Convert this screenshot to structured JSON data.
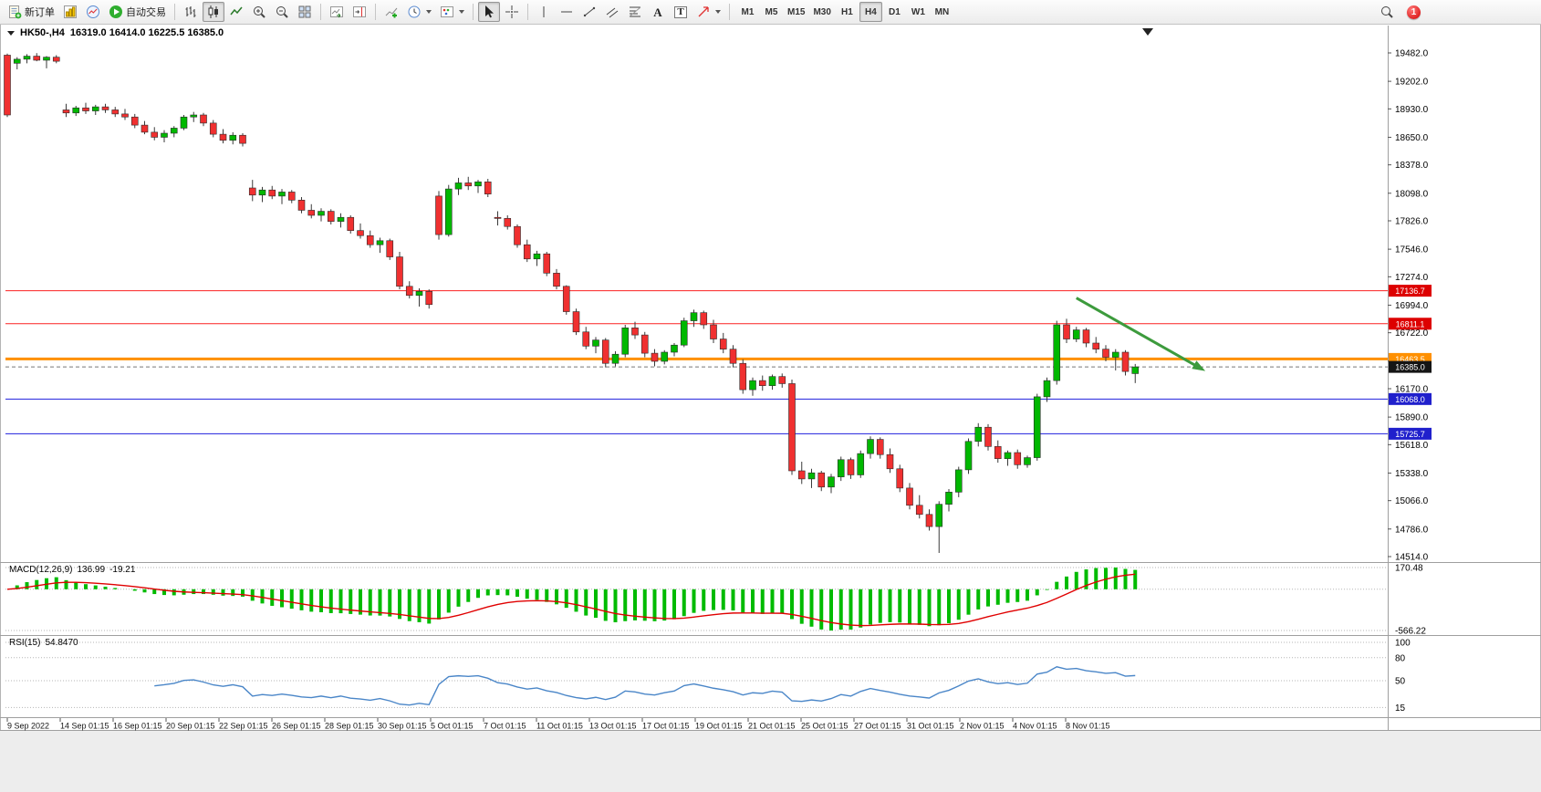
{
  "toolbar": {
    "new_order_label": "新订单",
    "autotrading_label": "自动交易",
    "timeframes": [
      "M1",
      "M5",
      "M15",
      "M30",
      "H1",
      "H4",
      "D1",
      "W1",
      "MN"
    ],
    "active_timeframe": "H4",
    "notification_badge": "1",
    "text_tool_glyph": "A",
    "label_tool_glyph": "T"
  },
  "chart_data": {
    "type": "candlestick",
    "symbol_period": "HK50-,H4",
    "title_ohlc_text": "16319.0 16414.0 16225.5 16385.0",
    "current_candle": {
      "open": 16319.0,
      "high": 16414.0,
      "low": 16225.5,
      "close": 16385.0
    },
    "up_color": "#00b800",
    "down_color": "#f03030",
    "price_axis_ticks": [
      "19482.0",
      "19202.0",
      "18930.0",
      "18650.0",
      "18378.0",
      "18098.0",
      "17826.0",
      "17546.0",
      "17274.0",
      "16994.0",
      "16722.0",
      "16442.0",
      "16170.0",
      "15890.0",
      "15618.0",
      "15338.0",
      "15066.0",
      "14786.0",
      "14514.0"
    ],
    "time_axis_labels": [
      "9 Sep 2022",
      "14 Sep 01:15",
      "16 Sep 01:15",
      "20 Sep 01:15",
      "22 Sep 01:15",
      "26 Sep 01:15",
      "28 Sep 01:15",
      "30 Sep 01:15",
      "5 Oct 01:15",
      "7 Oct 01:15",
      "11 Oct 01:15",
      "13 Oct 01:15",
      "17 Oct 01:15",
      "19 Oct 01:15",
      "21 Oct 01:15",
      "25 Oct 01:15",
      "27 Oct 01:15",
      "31 Oct 01:15",
      "2 Nov 01:15",
      "4 Nov 01:15",
      "8 Nov 01:15"
    ],
    "horizontal_levels": [
      {
        "label": "17136.7",
        "price": 17136.7,
        "line_color": "#fb2020",
        "label_bg": "#dd0000",
        "width": 1,
        "dash": ""
      },
      {
        "label": "16811.1",
        "price": 16811.1,
        "line_color": "#fb2020",
        "label_bg": "#dd0000",
        "width": 1,
        "dash": ""
      },
      {
        "label": "16463.5",
        "price": 16463.5,
        "line_color": "#ff9000",
        "label_bg": "#ff9000",
        "width": 3,
        "dash": ""
      },
      {
        "label": "16385.0",
        "price": 16385.0,
        "line_color": "#777777",
        "label_bg": "#151515",
        "width": 1,
        "dash": "4,3"
      },
      {
        "label": "16068.0",
        "price": 16068.0,
        "line_color": "#2020dd",
        "label_bg": "#2020cc",
        "width": 1,
        "dash": ""
      },
      {
        "label": "15725.7",
        "price": 15725.7,
        "line_color": "#2020dd",
        "label_bg": "#2020cc",
        "width": 1,
        "dash": ""
      }
    ],
    "trend_arrow": {
      "from_index": 109,
      "from_price": 17065,
      "to_index": 121.5,
      "to_price": 16380,
      "color": "#3d9b3d"
    },
    "candles_ohlc": [
      [
        19460,
        19475,
        18850,
        18870
      ],
      [
        19380,
        19440,
        19320,
        19420
      ],
      [
        19420,
        19470,
        19380,
        19450
      ],
      [
        19450,
        19480,
        19400,
        19410
      ],
      [
        19410,
        19450,
        19330,
        19440
      ],
      [
        19440,
        19460,
        19380,
        19400
      ],
      [
        18920,
        18980,
        18850,
        18890
      ],
      [
        18890,
        18960,
        18860,
        18940
      ],
      [
        18940,
        18990,
        18880,
        18910
      ],
      [
        18910,
        18970,
        18870,
        18950
      ],
      [
        18950,
        18980,
        18890,
        18920
      ],
      [
        18920,
        18950,
        18850,
        18880
      ],
      [
        18880,
        18930,
        18820,
        18850
      ],
      [
        18850,
        18880,
        18740,
        18770
      ],
      [
        18770,
        18810,
        18680,
        18700
      ],
      [
        18700,
        18750,
        18620,
        18650
      ],
      [
        18650,
        18720,
        18600,
        18690
      ],
      [
        18690,
        18760,
        18650,
        18740
      ],
      [
        18740,
        18870,
        18720,
        18850
      ],
      [
        18850,
        18900,
        18800,
        18870
      ],
      [
        18870,
        18890,
        18760,
        18790
      ],
      [
        18790,
        18820,
        18650,
        18680
      ],
      [
        18680,
        18730,
        18590,
        18620
      ],
      [
        18620,
        18700,
        18580,
        18670
      ],
      [
        18670,
        18690,
        18560,
        18590
      ],
      [
        18150,
        18230,
        18020,
        18080
      ],
      [
        18080,
        18160,
        18010,
        18130
      ],
      [
        18130,
        18170,
        18040,
        18070
      ],
      [
        18070,
        18140,
        17990,
        18110
      ],
      [
        18110,
        18130,
        18000,
        18030
      ],
      [
        18030,
        18060,
        17900,
        17930
      ],
      [
        17930,
        17990,
        17850,
        17880
      ],
      [
        17880,
        17950,
        17820,
        17920
      ],
      [
        17920,
        17940,
        17790,
        17820
      ],
      [
        17820,
        17900,
        17760,
        17860
      ],
      [
        17860,
        17880,
        17700,
        17730
      ],
      [
        17730,
        17800,
        17650,
        17680
      ],
      [
        17680,
        17730,
        17560,
        17590
      ],
      [
        17590,
        17660,
        17510,
        17630
      ],
      [
        17630,
        17650,
        17440,
        17470
      ],
      [
        17470,
        17520,
        17150,
        17180
      ],
      [
        17180,
        17230,
        17060,
        17090
      ],
      [
        17090,
        17160,
        16980,
        17130
      ],
      [
        17130,
        17150,
        16960,
        17000
      ],
      [
        18070,
        18120,
        17640,
        17690
      ],
      [
        17690,
        18180,
        17670,
        18140
      ],
      [
        18140,
        18250,
        18080,
        18200
      ],
      [
        18200,
        18260,
        18130,
        18170
      ],
      [
        18170,
        18230,
        18100,
        18210
      ],
      [
        18210,
        18240,
        18060,
        18090
      ],
      [
        17860,
        17920,
        17780,
        17850
      ],
      [
        17850,
        17880,
        17740,
        17770
      ],
      [
        17770,
        17790,
        17560,
        17590
      ],
      [
        17590,
        17640,
        17420,
        17450
      ],
      [
        17450,
        17530,
        17380,
        17500
      ],
      [
        17500,
        17520,
        17280,
        17310
      ],
      [
        17310,
        17350,
        17150,
        17180
      ],
      [
        17180,
        17190,
        16900,
        16930
      ],
      [
        16930,
        16960,
        16700,
        16730
      ],
      [
        16730,
        16780,
        16560,
        16590
      ],
      [
        16590,
        16680,
        16520,
        16650
      ],
      [
        16650,
        16670,
        16380,
        16420
      ],
      [
        16420,
        16540,
        16390,
        16510
      ],
      [
        16510,
        16800,
        16480,
        16770
      ],
      [
        16770,
        16830,
        16660,
        16700
      ],
      [
        16700,
        16730,
        16480,
        16520
      ],
      [
        16520,
        16560,
        16390,
        16440
      ],
      [
        16440,
        16550,
        16410,
        16530
      ],
      [
        16530,
        16620,
        16490,
        16600
      ],
      [
        16600,
        16870,
        16580,
        16840
      ],
      [
        16840,
        16950,
        16780,
        16920
      ],
      [
        16920,
        16940,
        16760,
        16800
      ],
      [
        16800,
        16850,
        16620,
        16660
      ],
      [
        16660,
        16720,
        16520,
        16560
      ],
      [
        16560,
        16600,
        16380,
        16420
      ],
      [
        16420,
        16460,
        16120,
        16160
      ],
      [
        16160,
        16280,
        16100,
        16250
      ],
      [
        16250,
        16300,
        16150,
        16200
      ],
      [
        16200,
        16310,
        16160,
        16290
      ],
      [
        16290,
        16320,
        16180,
        16220
      ],
      [
        16220,
        16260,
        15320,
        15360
      ],
      [
        15360,
        15450,
        15230,
        15280
      ],
      [
        15280,
        15380,
        15190,
        15340
      ],
      [
        15340,
        15360,
        15160,
        15200
      ],
      [
        15200,
        15330,
        15140,
        15300
      ],
      [
        15300,
        15500,
        15260,
        15470
      ],
      [
        15470,
        15490,
        15280,
        15320
      ],
      [
        15320,
        15560,
        15290,
        15530
      ],
      [
        15530,
        15700,
        15480,
        15670
      ],
      [
        15670,
        15690,
        15480,
        15520
      ],
      [
        15520,
        15580,
        15340,
        15380
      ],
      [
        15380,
        15420,
        15150,
        15190
      ],
      [
        15190,
        15240,
        14980,
        15020
      ],
      [
        15020,
        15120,
        14890,
        14930
      ],
      [
        14930,
        14980,
        14770,
        14810
      ],
      [
        14810,
        15060,
        14550,
        15030
      ],
      [
        15030,
        15180,
        14960,
        15150
      ],
      [
        15150,
        15400,
        15100,
        15370
      ],
      [
        15370,
        15680,
        15330,
        15650
      ],
      [
        15650,
        15830,
        15600,
        15790
      ],
      [
        15790,
        15820,
        15560,
        15600
      ],
      [
        15600,
        15660,
        15440,
        15480
      ],
      [
        15480,
        15560,
        15410,
        15540
      ],
      [
        15540,
        15570,
        15380,
        15420
      ],
      [
        15420,
        15510,
        15390,
        15490
      ],
      [
        15490,
        16120,
        15460,
        16090
      ],
      [
        16090,
        16280,
        16040,
        16250
      ],
      [
        16250,
        16840,
        16210,
        16800
      ],
      [
        16800,
        16860,
        16620,
        16660
      ],
      [
        16660,
        16780,
        16630,
        16750
      ],
      [
        16750,
        16770,
        16580,
        16620
      ],
      [
        16620,
        16680,
        16520,
        16560
      ],
      [
        16560,
        16600,
        16440,
        16480
      ],
      [
        16480,
        16560,
        16350,
        16530
      ],
      [
        16530,
        16550,
        16300,
        16340
      ],
      [
        16319,
        16414,
        16225.5,
        16385
      ]
    ],
    "indicators": {
      "macd": {
        "label": "MACD(12,26,9)",
        "value_main": "136.99",
        "value_signal": "-19.21",
        "fast": 12,
        "slow": 26,
        "signal": 9,
        "axis_max_label": "170.48",
        "axis_min_label": "-566.22",
        "histogram_color": "#00bb00",
        "signal_color": "#e00000"
      },
      "rsi": {
        "label": "RSI(15)",
        "value": "54.8470",
        "period": 15,
        "axis_ticks": [
          "100",
          "80",
          "50",
          "15"
        ],
        "line_color": "#4a86c8"
      }
    }
  }
}
